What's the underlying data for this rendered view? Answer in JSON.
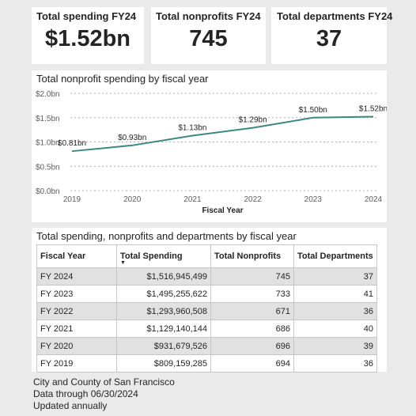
{
  "kpis": [
    {
      "title": "Total spending FY24",
      "value": "$1.52bn"
    },
    {
      "title": "Total nonprofits FY24",
      "value": "745"
    },
    {
      "title": "Total departments FY24",
      "value": "37"
    }
  ],
  "chart_data": {
    "type": "line",
    "title": "Total nonprofit spending by fiscal year",
    "xlabel": "Fiscal Year",
    "ylabel": "",
    "x": [
      "2019",
      "2020",
      "2021",
      "2022",
      "2023",
      "2024"
    ],
    "values": [
      0.81,
      0.93,
      1.13,
      1.29,
      1.5,
      1.52
    ],
    "data_labels": [
      "$0.81bn",
      "$0.93bn",
      "$1.13bn",
      "$1.29bn",
      "$1.50bn",
      "$1.52bn"
    ],
    "y_ticks": [
      0,
      0.5,
      1.0,
      1.5,
      2.0
    ],
    "y_tick_labels": [
      "$0.0bn",
      "$0.5bn",
      "$1.0bn",
      "$1.5bn",
      "$2.0bn"
    ],
    "ylim": [
      0,
      2.0
    ],
    "grid": true,
    "line_color": "#3a8a7d"
  },
  "table": {
    "title": "Total spending, nonprofits and departments by fiscal year",
    "headers": [
      "Fiscal Year",
      "Total Spending",
      "Total Nonprofits",
      "Total Departments"
    ],
    "rows": [
      [
        "FY 2024",
        "$1,516,945,499",
        "745",
        "37"
      ],
      [
        "FY 2023",
        "$1,495,255,622",
        "733",
        "41"
      ],
      [
        "FY 2022",
        "$1,293,960,508",
        "671",
        "36"
      ],
      [
        "FY 2021",
        "$1,129,140,144",
        "686",
        "40"
      ],
      [
        "FY 2020",
        "$931,679,526",
        "696",
        "39"
      ],
      [
        "FY 2019",
        "$809,159,285",
        "694",
        "36"
      ]
    ]
  },
  "footer": {
    "line1": "City and County of San Francisco",
    "line2": "Data through 06/30/2024",
    "line3": "Updated annually"
  }
}
